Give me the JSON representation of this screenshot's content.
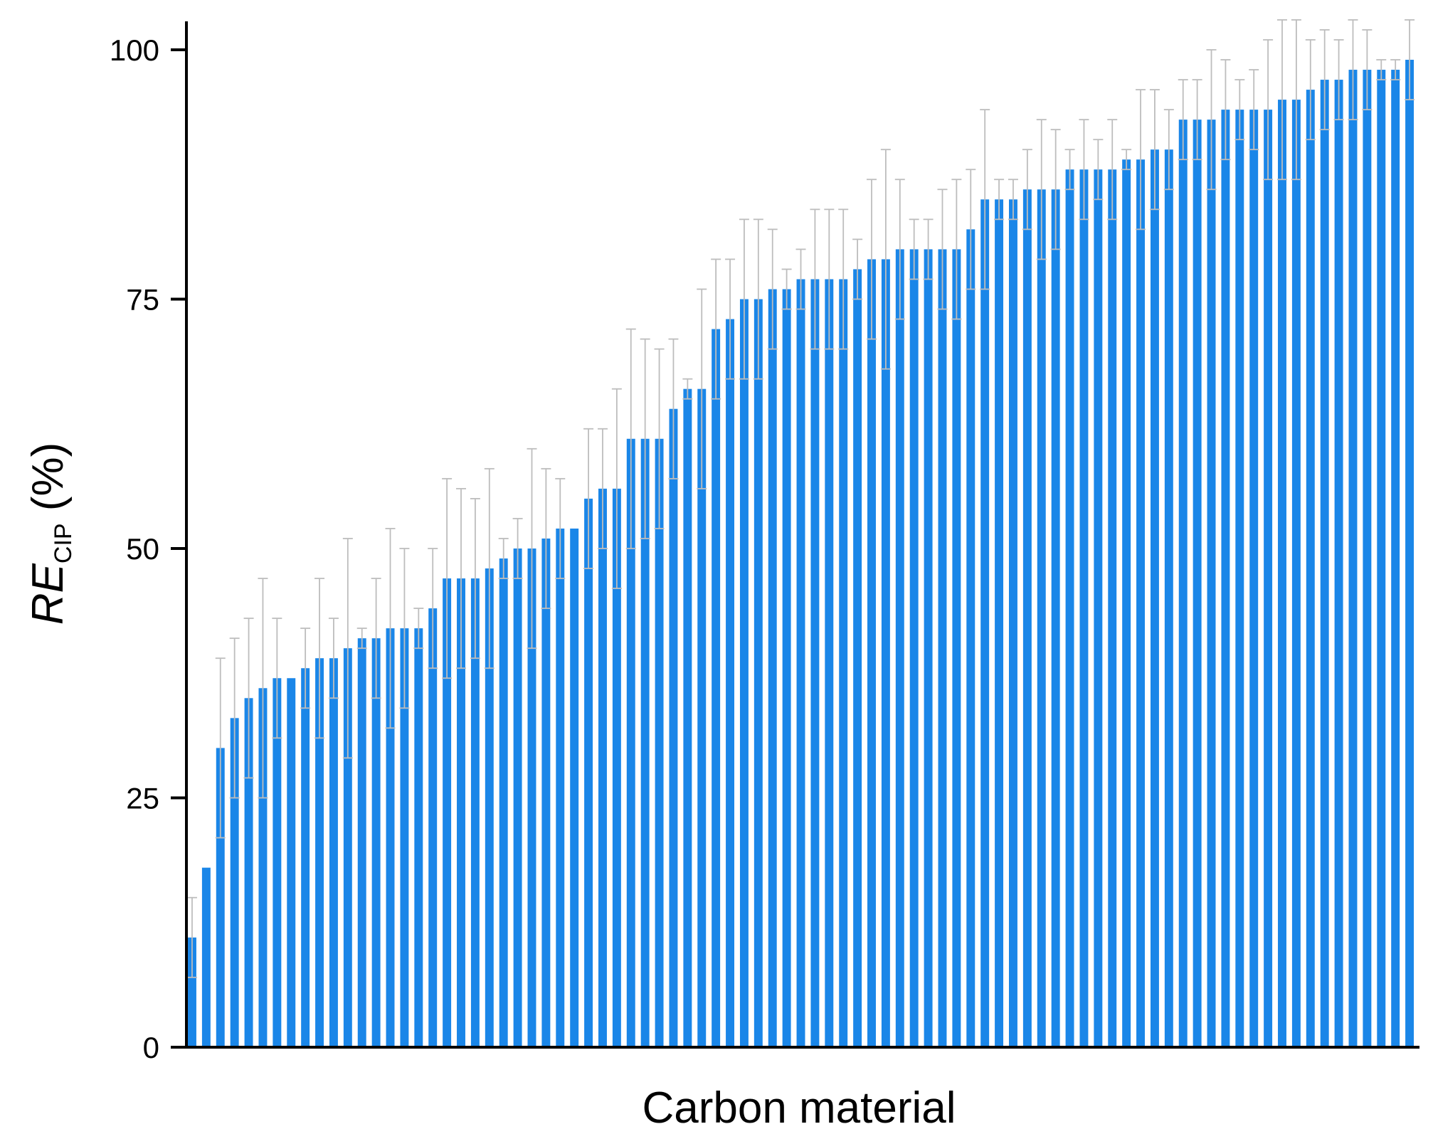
{
  "chart_data": {
    "type": "bar",
    "xlabel": "Carbon material",
    "ylabel": {
      "main": "RE",
      "subscript": "CIP",
      "unit": "(%)"
    },
    "ylim": [
      0,
      100
    ],
    "yticks": [
      0,
      25,
      50,
      75,
      100
    ],
    "grid": false,
    "bar_color": "#1a86e8",
    "error_color": "#bdbdbd",
    "axis_color": "#000000",
    "values": [
      11,
      18,
      30,
      33,
      35,
      36,
      37,
      37,
      38,
      39,
      39,
      40,
      41,
      41,
      42,
      42,
      42,
      44,
      47,
      47,
      47,
      48,
      49,
      50,
      50,
      51,
      52,
      52,
      55,
      56,
      56,
      61,
      61,
      61,
      64,
      66,
      66,
      72,
      73,
      75,
      75,
      76,
      76,
      77,
      77,
      77,
      77,
      78,
      79,
      79,
      80,
      80,
      80,
      80,
      80,
      82,
      85,
      85,
      85,
      86,
      86,
      86,
      88,
      88,
      88,
      88,
      89,
      89,
      90,
      90,
      93,
      93,
      93,
      94,
      94,
      94,
      94,
      95,
      95,
      96,
      97,
      97,
      98,
      98,
      98,
      98,
      99
    ],
    "errors": [
      4,
      0,
      9,
      8,
      8,
      11,
      6,
      0,
      4,
      8,
      4,
      11,
      1,
      6,
      10,
      8,
      2,
      6,
      10,
      9,
      8,
      10,
      2,
      3,
      10,
      7,
      5,
      0,
      7,
      6,
      10,
      11,
      10,
      9,
      7,
      1,
      10,
      7,
      6,
      8,
      8,
      6,
      2,
      3,
      7,
      7,
      7,
      3,
      8,
      11,
      7,
      3,
      3,
      6,
      7,
      6,
      9,
      2,
      2,
      4,
      7,
      6,
      2,
      5,
      3,
      5,
      1,
      7,
      6,
      4,
      4,
      4,
      7,
      5,
      3,
      4,
      7,
      8,
      8,
      5,
      5,
      4,
      5,
      4,
      1,
      1,
      4
    ]
  }
}
